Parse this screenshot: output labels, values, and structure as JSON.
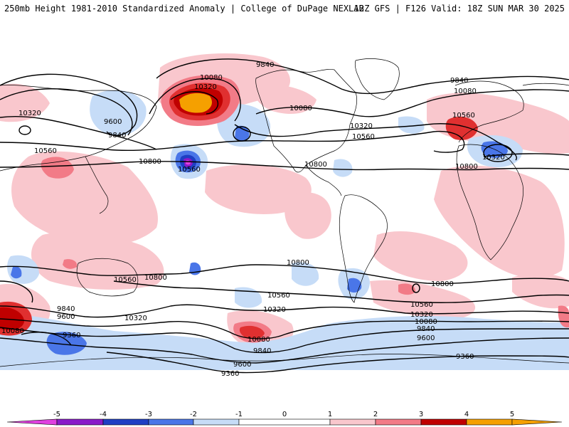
{
  "header": {
    "left": "250mb Height 1981-2010 Standardized Anomaly | College of DuPage NEXLAB",
    "right": "12Z GFS | F126 Valid: 18Z SUN MAR 30 2025"
  },
  "colors": {
    "ocean": "#ffffff",
    "coast": "#000000",
    "contour": "#000000",
    "neg5": "#e040e0",
    "neg4": "#8a1ac9",
    "neg3": "#1f3fc4",
    "neg2": "#4a76e8",
    "neg1": "#c6dcf7",
    "pos1": "#f9c7cd",
    "pos2": "#f27b87",
    "pos3": "#e03030",
    "pos4": "#c00000",
    "pos5": "#f5a000"
  },
  "colorbar": {
    "ticks": [
      "-5",
      "-4",
      "-3",
      "-2",
      "-1",
      "0",
      "1",
      "2",
      "3",
      "4",
      "5"
    ]
  },
  "contour_labels": {
    "nw_9840": "9840",
    "np_10080": "10080",
    "np_10320": "10320",
    "kam_9600": "9600",
    "kam_9840": "9840",
    "asia_10320": "10320",
    "asia_10560": "10560",
    "pac_10800": "10800",
    "pac_10560": "10560",
    "na_10080": "10080",
    "na_10320": "10320",
    "na_10560": "10560",
    "na_10800": "10800",
    "eu_9840": "9840",
    "eu_10080": "10080",
    "eu_10560": "10560",
    "eu_10320": "10320",
    "af_10800": "10800",
    "sp_10800a": "10800",
    "sp_10560a": "10560",
    "sp_10800b": "10800",
    "w_9840": "9840",
    "w_9600": "9600",
    "w_10080": "10080",
    "w_9360": "9360",
    "sp_10320": "10320",
    "sp_10560b": "10560",
    "sp_10320b": "10320",
    "sp_10080": "10080",
    "sp_9840": "9840",
    "sp_9600": "9600",
    "sp_9360": "9360",
    "sa_10800": "10800",
    "sa_10560": "10560",
    "sa_10320": "10320",
    "sa_10080": "10080",
    "sa_9840": "9840",
    "sa_9600": "9600",
    "sa_9360": "9360"
  }
}
